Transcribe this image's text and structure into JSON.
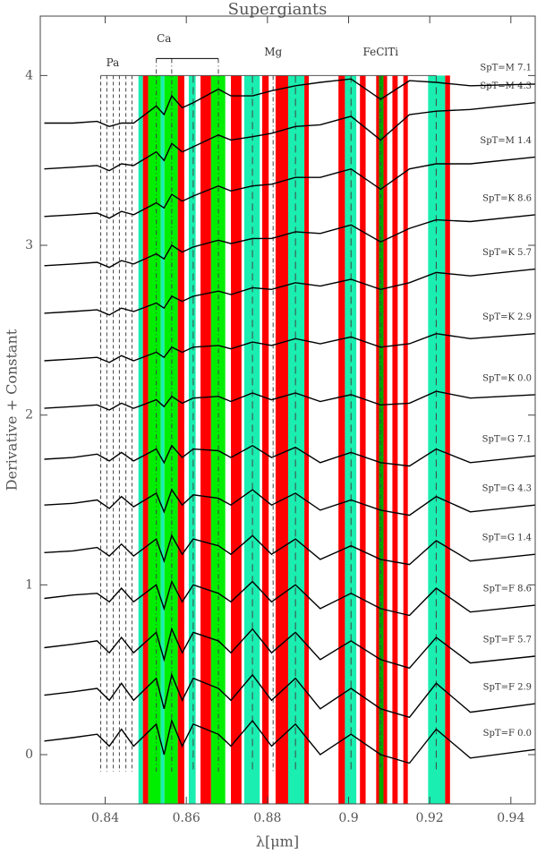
{
  "chart_data": {
    "type": "line",
    "title": "Supergiants",
    "x_label": "λ[μm]",
    "y_label": "Derivative + Constant",
    "xlim": [
      0.824,
      0.946
    ],
    "ylim": [
      -0.29,
      4.35
    ],
    "xticks": [
      0.84,
      0.86,
      0.88,
      0.9,
      0.92,
      0.94
    ],
    "yticks": [
      0,
      1,
      2,
      3,
      4
    ],
    "x": [
      0.825,
      0.832,
      0.838,
      0.841,
      0.844,
      0.847,
      0.8526,
      0.8545,
      0.8564,
      0.859,
      0.8617,
      0.8679,
      0.871,
      0.8763,
      0.881,
      0.8869,
      0.893,
      0.9006,
      0.9079,
      0.915,
      0.9216,
      0.93,
      0.946
    ],
    "series": [
      {
        "name": "SpT=F 0.0",
        "color": "#000000",
        "values": [
          0.08,
          0.1,
          0.12,
          0.05,
          0.15,
          0.05,
          0.18,
          0.0,
          0.2,
          0.05,
          0.18,
          0.12,
          0.05,
          0.2,
          0.05,
          0.18,
          0.0,
          0.12,
          0.0,
          -0.05,
          0.15,
          -0.02,
          0.03
        ]
      },
      {
        "name": "SpT=F 2.9",
        "color": "#000000",
        "values": [
          0.35,
          0.37,
          0.39,
          0.32,
          0.42,
          0.32,
          0.45,
          0.27,
          0.47,
          0.32,
          0.45,
          0.39,
          0.32,
          0.47,
          0.32,
          0.45,
          0.27,
          0.39,
          0.27,
          0.22,
          0.42,
          0.25,
          0.3
        ]
      },
      {
        "name": "SpT=F 5.7",
        "color": "#000000",
        "values": [
          0.63,
          0.65,
          0.67,
          0.6,
          0.69,
          0.6,
          0.72,
          0.56,
          0.74,
          0.6,
          0.72,
          0.67,
          0.6,
          0.74,
          0.6,
          0.72,
          0.56,
          0.67,
          0.56,
          0.51,
          0.69,
          0.54,
          0.58
        ]
      },
      {
        "name": "SpT=F 8.6",
        "color": "#000000",
        "values": [
          0.92,
          0.94,
          0.95,
          0.9,
          0.98,
          0.9,
          1.0,
          0.86,
          1.02,
          0.9,
          1.0,
          0.95,
          0.9,
          1.02,
          0.9,
          1.0,
          0.86,
          0.95,
          0.86,
          0.82,
          0.98,
          0.84,
          0.88
        ]
      },
      {
        "name": "SpT=G 1.4",
        "color": "#000000",
        "values": [
          1.19,
          1.2,
          1.22,
          1.17,
          1.24,
          1.17,
          1.27,
          1.14,
          1.29,
          1.18,
          1.27,
          1.23,
          1.18,
          1.29,
          1.18,
          1.27,
          1.15,
          1.23,
          1.15,
          1.12,
          1.26,
          1.14,
          1.18
        ]
      },
      {
        "name": "SpT=G 4.3",
        "color": "#000000",
        "values": [
          1.47,
          1.48,
          1.5,
          1.45,
          1.52,
          1.46,
          1.54,
          1.43,
          1.56,
          1.47,
          1.53,
          1.51,
          1.47,
          1.56,
          1.47,
          1.54,
          1.44,
          1.5,
          1.44,
          1.41,
          1.52,
          1.43,
          1.47
        ]
      },
      {
        "name": "SpT=G 7.1",
        "color": "#000000",
        "values": [
          1.74,
          1.75,
          1.77,
          1.73,
          1.78,
          1.73,
          1.8,
          1.72,
          1.82,
          1.75,
          1.8,
          1.79,
          1.75,
          1.82,
          1.75,
          1.81,
          1.72,
          1.78,
          1.72,
          1.7,
          1.8,
          1.72,
          1.76
        ]
      },
      {
        "name": "SpT=K 0.0",
        "color": "#000000",
        "values": [
          2.04,
          2.05,
          2.06,
          2.03,
          2.07,
          2.04,
          2.09,
          2.05,
          2.11,
          2.07,
          2.1,
          2.11,
          2.08,
          2.13,
          2.09,
          2.13,
          2.08,
          2.12,
          2.06,
          2.07,
          2.14,
          2.1,
          2.12
        ]
      },
      {
        "name": "SpT=K 2.9",
        "color": "#000000",
        "values": [
          2.32,
          2.33,
          2.34,
          2.31,
          2.35,
          2.32,
          2.37,
          2.34,
          2.4,
          2.37,
          2.4,
          2.41,
          2.39,
          2.43,
          2.41,
          2.45,
          2.42,
          2.46,
          2.4,
          2.42,
          2.48,
          2.45,
          2.48
        ]
      },
      {
        "name": "SpT=K 5.7",
        "color": "#000000",
        "values": [
          2.6,
          2.61,
          2.62,
          2.59,
          2.63,
          2.61,
          2.66,
          2.63,
          2.7,
          2.67,
          2.7,
          2.73,
          2.71,
          2.75,
          2.74,
          2.78,
          2.76,
          2.8,
          2.74,
          2.78,
          2.84,
          2.82,
          2.86
        ]
      },
      {
        "name": "SpT=K 8.6",
        "color": "#000000",
        "values": [
          2.88,
          2.89,
          2.9,
          2.87,
          2.91,
          2.89,
          2.95,
          2.92,
          3.0,
          2.96,
          2.99,
          3.03,
          3.01,
          3.04,
          3.04,
          3.08,
          3.07,
          3.12,
          3.02,
          3.1,
          3.15,
          3.14,
          3.18
        ]
      },
      {
        "name": "SpT=M 1.4",
        "color": "#000000",
        "values": [
          3.17,
          3.18,
          3.19,
          3.16,
          3.2,
          3.18,
          3.25,
          3.22,
          3.3,
          3.26,
          3.29,
          3.35,
          3.32,
          3.35,
          3.36,
          3.4,
          3.4,
          3.45,
          3.33,
          3.45,
          3.48,
          3.48,
          3.52
        ]
      },
      {
        "name": "SpT=M 4.3",
        "color": "#000000",
        "values": [
          3.45,
          3.46,
          3.47,
          3.44,
          3.48,
          3.47,
          3.55,
          3.5,
          3.6,
          3.55,
          3.58,
          3.65,
          3.62,
          3.64,
          3.66,
          3.7,
          3.71,
          3.76,
          3.62,
          3.77,
          3.79,
          3.8,
          3.84
        ]
      },
      {
        "name": "SpT=M 7.1",
        "color": "#000000",
        "values": [
          3.72,
          3.72,
          3.73,
          3.7,
          3.72,
          3.72,
          3.82,
          3.77,
          3.88,
          3.81,
          3.84,
          3.92,
          3.88,
          3.88,
          3.91,
          3.94,
          3.96,
          3.98,
          3.86,
          3.97,
          3.96,
          3.94,
          3.95
        ]
      }
    ],
    "bands": [
      {
        "range": [
          0.8482,
          0.8493
        ],
        "color": "#1aeeb0"
      },
      {
        "range": [
          0.8493,
          0.8506
        ],
        "color": "#ff0000"
      },
      {
        "range": [
          0.8506,
          0.8537
        ],
        "color": "#00ee00"
      },
      {
        "range": [
          0.8537,
          0.8546
        ],
        "color": "#1aeeb0"
      },
      {
        "range": [
          0.8546,
          0.8579
        ],
        "color": "#00ee00"
      },
      {
        "range": [
          0.8579,
          0.8595
        ],
        "color": "#ff0000"
      },
      {
        "range": [
          0.8606,
          0.8623
        ],
        "color": "#1aeeb0"
      },
      {
        "range": [
          0.8635,
          0.8661
        ],
        "color": "#ff0000"
      },
      {
        "range": [
          0.8661,
          0.8696
        ],
        "color": "#00ee00"
      },
      {
        "range": [
          0.871,
          0.8736
        ],
        "color": "#ff0000"
      },
      {
        "range": [
          0.8743,
          0.8781
        ],
        "color": "#1aeeb0"
      },
      {
        "range": [
          0.8787,
          0.8803
        ],
        "color": "#ff0000"
      },
      {
        "range": [
          0.882,
          0.8851
        ],
        "color": "#ff0000"
      },
      {
        "range": [
          0.8851,
          0.8891
        ],
        "color": "#1aeeb0"
      },
      {
        "range": [
          0.8891,
          0.8902
        ],
        "color": "#ff0000"
      },
      {
        "range": [
          0.8975,
          0.8991
        ],
        "color": "#ff0000"
      },
      {
        "range": [
          0.8991,
          0.9019
        ],
        "color": "#1aeeb0"
      },
      {
        "range": [
          0.9028,
          0.9042
        ],
        "color": "#ff0000"
      },
      {
        "range": [
          0.9068,
          0.9075
        ],
        "color": "#ff0000"
      },
      {
        "range": [
          0.9075,
          0.9086
        ],
        "color": "#00aa00"
      },
      {
        "range": [
          0.9086,
          0.9095
        ],
        "color": "#ff0000"
      },
      {
        "range": [
          0.9108,
          0.9121
        ],
        "color": "#ff0000"
      },
      {
        "range": [
          0.9135,
          0.9146
        ],
        "color": "#ff0000"
      },
      {
        "range": [
          0.9196,
          0.9238
        ],
        "color": "#1aeeb0"
      },
      {
        "range": [
          0.9238,
          0.925
        ],
        "color": "#ff0000"
      }
    ],
    "features": [
      {
        "label": "Pa",
        "lines": [
          0.8389,
          0.8404,
          0.842,
          0.8435,
          0.8451,
          0.8466
        ]
      },
      {
        "label": "Ca",
        "lines": [
          0.8526,
          0.8564,
          0.8679
        ]
      },
      {
        "label": "Mg",
        "lines": [
          0.8814
        ]
      },
      {
        "label": "FeClTi",
        "lines": [
          0.9079
        ]
      }
    ],
    "other_lines": [
      0.8617,
      0.8763,
      0.8869,
      0.9006,
      0.9216
    ]
  }
}
